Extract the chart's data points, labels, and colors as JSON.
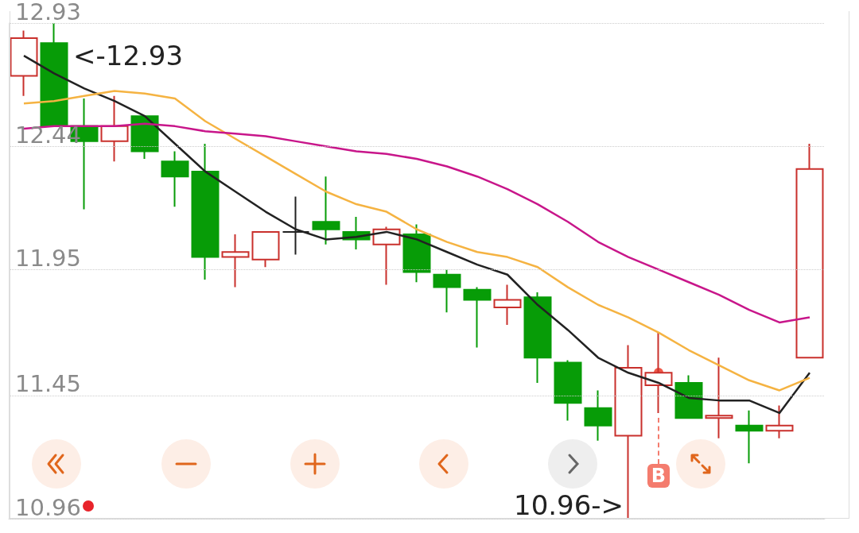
{
  "chart_data": {
    "type": "candlestick",
    "categories": [
      null,
      null,
      null,
      null,
      null,
      null,
      null,
      null,
      null,
      null,
      null,
      null,
      null,
      null,
      null,
      null,
      null,
      null,
      null,
      null,
      null,
      null,
      null,
      null,
      null,
      null,
      null
    ],
    "ohlc": [
      [
        12.72,
        12.9,
        12.64,
        12.87
      ],
      [
        12.85,
        12.93,
        12.52,
        12.52
      ],
      [
        12.52,
        12.63,
        12.19,
        12.46
      ],
      [
        12.46,
        12.64,
        12.38,
        12.52
      ],
      [
        12.56,
        12.56,
        12.39,
        12.42
      ],
      [
        12.38,
        12.42,
        12.2,
        12.32
      ],
      [
        12.34,
        12.45,
        11.91,
        12.0
      ],
      [
        12.0,
        12.09,
        11.88,
        12.02
      ],
      [
        11.99,
        12.1,
        11.96,
        12.1
      ],
      [
        12.1,
        12.24,
        12.01,
        12.1
      ],
      [
        12.14,
        12.32,
        12.05,
        12.11
      ],
      [
        12.1,
        12.16,
        12.03,
        12.07
      ],
      [
        12.05,
        12.12,
        11.89,
        12.11
      ],
      [
        12.09,
        12.13,
        11.9,
        11.94
      ],
      [
        11.93,
        11.95,
        11.78,
        11.88
      ],
      [
        11.87,
        11.88,
        11.64,
        11.83
      ],
      [
        11.8,
        11.89,
        11.73,
        11.83
      ],
      [
        11.84,
        11.86,
        11.5,
        11.6
      ],
      [
        11.58,
        11.59,
        11.35,
        11.42
      ],
      [
        11.4,
        11.47,
        11.27,
        11.33
      ],
      [
        11.29,
        11.65,
        10.96,
        11.56
      ],
      [
        11.49,
        11.7,
        11.38,
        11.54
      ],
      [
        11.5,
        11.53,
        11.36,
        11.36
      ],
      [
        11.36,
        11.6,
        11.28,
        11.37
      ],
      [
        11.33,
        11.39,
        11.18,
        11.31
      ],
      [
        11.31,
        11.41,
        11.28,
        11.33
      ],
      [
        11.6,
        12.45,
        11.6,
        12.35
      ]
    ],
    "series": [
      {
        "type": "line",
        "color": "#222222",
        "values": [
          12.8,
          12.73,
          12.67,
          12.62,
          12.56,
          12.45,
          12.34,
          12.26,
          12.18,
          12.11,
          12.07,
          12.08,
          12.1,
          12.07,
          12.02,
          11.97,
          11.93,
          11.81,
          11.71,
          11.6,
          11.54,
          11.5,
          11.44,
          11.43,
          11.43,
          11.38,
          11.54
        ]
      },
      {
        "type": "line",
        "color": "#f5b342",
        "values": [
          12.61,
          12.62,
          12.64,
          12.66,
          12.65,
          12.63,
          12.54,
          12.47,
          12.4,
          12.33,
          12.26,
          12.21,
          12.18,
          12.11,
          12.06,
          12.02,
          12.0,
          11.96,
          11.88,
          11.81,
          11.76,
          11.7,
          11.63,
          11.57,
          11.51,
          11.47,
          11.52
        ]
      },
      {
        "type": "line",
        "color": "#c8168a",
        "values": [
          12.51,
          12.52,
          12.52,
          12.52,
          12.53,
          12.52,
          12.5,
          12.49,
          12.48,
          12.46,
          12.44,
          12.42,
          12.41,
          12.39,
          12.36,
          12.32,
          12.27,
          12.21,
          12.14,
          12.06,
          12.0,
          11.95,
          11.9,
          11.85,
          11.79,
          11.74,
          11.76
        ]
      }
    ],
    "ylim": [
      10.96,
      12.93
    ],
    "yticks": [
      12.93,
      12.44,
      11.95,
      11.45,
      10.96
    ],
    "grid": "y",
    "tick_labels": "y",
    "marker": "none",
    "annotations": [
      "<-12.93",
      "10.96->",
      "B"
    ]
  }
}
